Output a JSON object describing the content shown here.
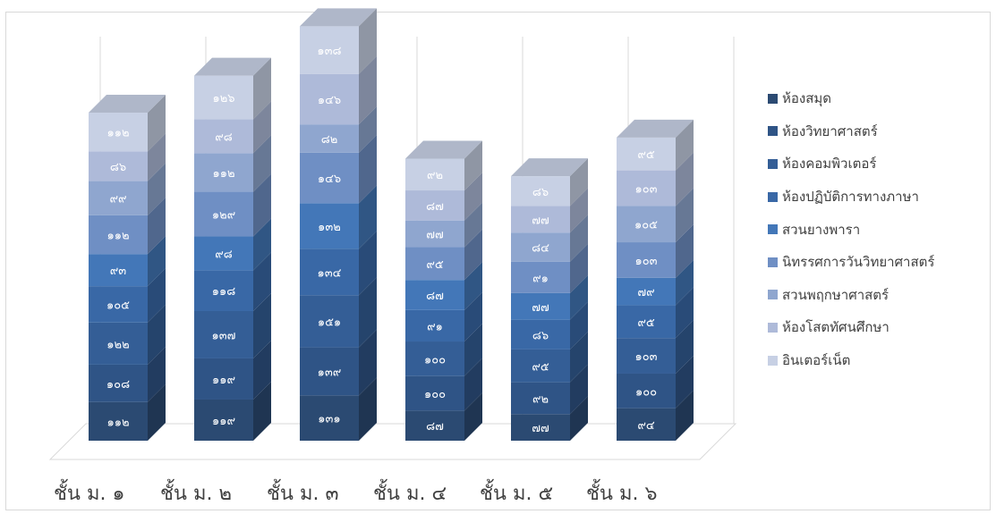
{
  "chart_data": {
    "type": "bar",
    "stacked": true,
    "three_d": true,
    "categories": [
      "ชั้น ม. ๑",
      "ชั้น ม. ๒",
      "ชั้น ม. ๓",
      "ชั้น ม. ๔",
      "ชั้น ม. ๕",
      "ชั้น ม. ๖"
    ],
    "series": [
      {
        "name": "ห้องสมุด",
        "color": "#2b4a72",
        "values": [
          112,
          119,
          131,
          87,
          77,
          94
        ],
        "labels": [
          "๑๑๒",
          "๑๑๙",
          "๑๓๑",
          "๘๗",
          "๗๗",
          "๙๔"
        ]
      },
      {
        "name": "ห้องวิทยาศาสตร์",
        "color": "#2f5486",
        "values": [
          108,
          119,
          139,
          100,
          92,
          100
        ],
        "labels": [
          "๑๐๘",
          "๑๑๙",
          "๑๓๙",
          "๑๐๐",
          "๙๒",
          "๑๐๐"
        ]
      },
      {
        "name": "ห้องคอมพิวเตอร์",
        "color": "#345e96",
        "values": [
          122,
          137,
          151,
          100,
          95,
          103
        ],
        "labels": [
          "๑๒๒",
          "๑๓๗",
          "๑๕๑",
          "๑๐๐",
          "๙๕",
          "๑๐๓"
        ]
      },
      {
        "name": "ห้องปฏิบัติการทางภาษา",
        "color": "#3968a6",
        "values": [
          105,
          118,
          134,
          91,
          86,
          95
        ],
        "labels": [
          "๑๐๕",
          "๑๑๘",
          "๑๓๔",
          "๙๑",
          "๘๖",
          "๙๕"
        ]
      },
      {
        "name": "สวนยางพารา",
        "color": "#4377b8",
        "values": [
          93,
          98,
          132,
          87,
          77,
          79
        ],
        "labels": [
          "๙๓",
          "๙๘",
          "๑๓๒",
          "๘๗",
          "๗๗",
          "๗๙"
        ]
      },
      {
        "name": "นิทรรศการวันวิทยาศาสตร์",
        "color": "#6f8fc4",
        "values": [
          112,
          129,
          146,
          95,
          91,
          103
        ],
        "labels": [
          "๑๑๒",
          "๑๒๙",
          "๑๔๖",
          "๙๕",
          "๙๑",
          "๑๐๓"
        ]
      },
      {
        "name": "สวนพฤกษาศาสตร์",
        "color": "#8fa6cf",
        "values": [
          99,
          112,
          82,
          77,
          84,
          105
        ],
        "labels": [
          "๙๙",
          "๑๑๒",
          "๘๒",
          "๗๗",
          "๘๔",
          "๑๐๕"
        ]
      },
      {
        "name": "ห้องโสตทัศนศึกษา",
        "color": "#aebad9",
        "values": [
          86,
          98,
          146,
          87,
          77,
          103
        ],
        "labels": [
          "๘๖",
          "๙๘",
          "๑๔๖",
          "๘๗",
          "๗๗",
          "๑๐๓"
        ]
      },
      {
        "name": "อินเตอร์เน็ต",
        "color": "#c7d0e4",
        "values": [
          112,
          126,
          138,
          92,
          86,
          95
        ],
        "labels": [
          "๑๑๒",
          "๑๒๖",
          "๑๓๘",
          "๙๒",
          "๘๖",
          "๙๕"
        ]
      }
    ],
    "legend_position": "right",
    "grid": true,
    "title": "",
    "xlabel": "",
    "ylabel": ""
  }
}
